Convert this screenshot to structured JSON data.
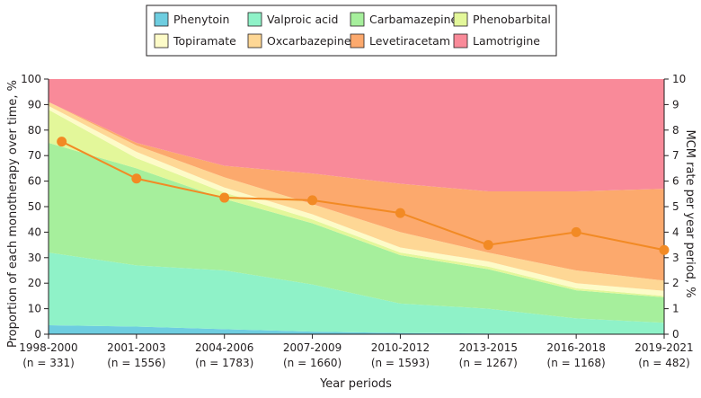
{
  "chart_data": {
    "type": "area",
    "stacked": true,
    "percent_stacked": true,
    "categories": [
      "1998-2000",
      "2001-2003",
      "2004-2006",
      "2007-2009",
      "2010-2012",
      "2013-2015",
      "2016-2018",
      "2019-2021"
    ],
    "category_counts": [
      "(n = 331)",
      "(n = 1556)",
      "(n = 1783)",
      "(n = 1660)",
      "(n = 1593)",
      "(n = 1267)",
      "(n = 1168)",
      "(n = 482)"
    ],
    "xlabel": "Year periods",
    "ylabel": "Proportion of each monotherapy over time, %",
    "ylim": [
      0,
      100
    ],
    "yticks": [
      0,
      10,
      20,
      30,
      40,
      50,
      60,
      70,
      80,
      90,
      100
    ],
    "y2label": "MCM rate per year period, %",
    "y2lim": [
      0,
      10
    ],
    "y2ticks": [
      0,
      1,
      2,
      3,
      4,
      5,
      6,
      7,
      8,
      9,
      10
    ],
    "grid": false,
    "legend_position": "top",
    "series": [
      {
        "name": "Phenytoin",
        "color": "#6ecde0",
        "values": [
          3.5,
          3,
          2,
          1,
          0.5,
          0.3,
          0.2,
          0.1
        ]
      },
      {
        "name": "Valproic acid",
        "color": "#8ff2c8",
        "values": [
          28.5,
          24,
          23,
          18.5,
          11.5,
          9.7,
          6,
          4.4
        ]
      },
      {
        "name": "Carbamazepine",
        "color": "#a6ef9c",
        "values": [
          43,
          38,
          28,
          24,
          19,
          15.5,
          11,
          10
        ]
      },
      {
        "name": "Phenobarbital",
        "color": "#e3f79a",
        "values": [
          13,
          4,
          2.5,
          1.5,
          1,
          1,
          0.8,
          0.5
        ]
      },
      {
        "name": "Topiramate",
        "color": "#fdfbc8",
        "values": [
          1.5,
          2.5,
          2,
          2,
          2,
          2,
          2,
          2
        ]
      },
      {
        "name": "Oxcarbazepine",
        "color": "#fed795",
        "values": [
          1.5,
          2.5,
          4,
          4,
          6,
          3.5,
          5,
          4
        ]
      },
      {
        "name": "Levetiracetam",
        "color": "#fca96d",
        "values": [
          0,
          1,
          4.5,
          12,
          19,
          24,
          31,
          36
        ]
      },
      {
        "name": "Lamotrigine",
        "color": "#f98a99",
        "values": [
          9,
          25,
          34,
          37,
          41,
          44,
          44,
          43
        ]
      }
    ],
    "line_series": {
      "name": "MCM rate",
      "axis": "right",
      "color": "#f28a24",
      "x": [
        0.15,
        1,
        2,
        3,
        4,
        5,
        6,
        7
      ],
      "x_note": "2019-2021 has no marker; the 2016-2018 and 2019-2021 points sit between category ticks",
      "values": [
        7.55,
        6.1,
        5.35,
        5.25,
        4.75,
        3.5,
        4.0,
        3.3
      ]
    }
  }
}
